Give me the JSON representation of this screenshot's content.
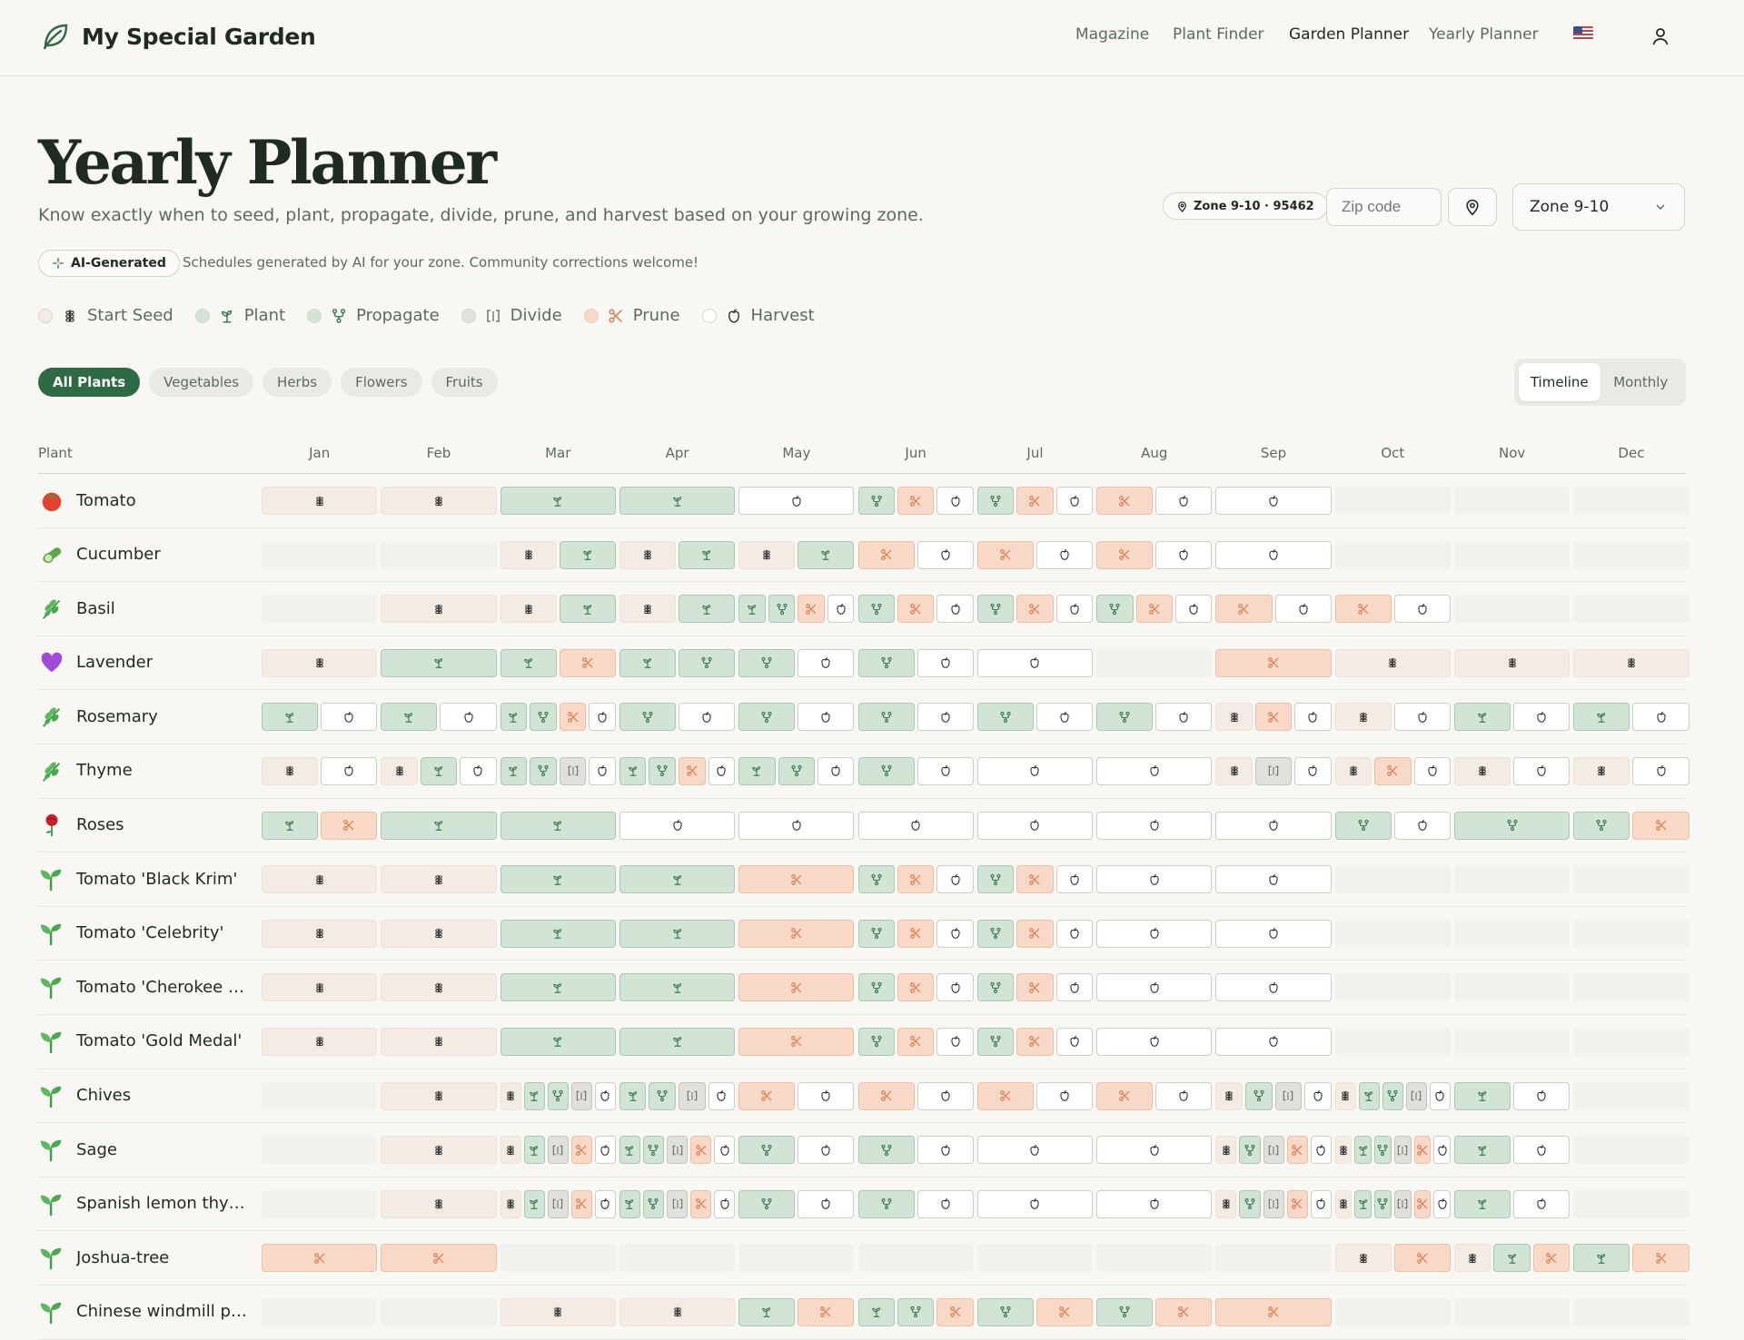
{
  "brand": {
    "name": "My Special Garden"
  },
  "nav": {
    "magazine": "Magazine",
    "plant_finder": "Plant Finder",
    "garden_planner": "Garden Planner",
    "yearly_planner": "Yearly Planner"
  },
  "page": {
    "title": "Yearly Planner",
    "subtitle": "Know exactly when to seed, plant, propagate, divide, prune, and harvest based on your growing zone."
  },
  "zone": {
    "pill": "Zone 9-10 · 95462",
    "zip_placeholder": "Zip code",
    "selected": "Zone 9-10"
  },
  "ai": {
    "badge": "AI-Generated",
    "note": "Schedules generated by AI for your zone. Community corrections welcome!"
  },
  "legend": [
    {
      "key": "seed",
      "label": "Start Seed",
      "color": "#f4ebe5"
    },
    {
      "key": "plant",
      "label": "Plant",
      "color": "#d2e4d6"
    },
    {
      "key": "prop",
      "label": "Propagate",
      "color": "#d2e4d6"
    },
    {
      "key": "divide",
      "label": "Divide",
      "color": "#e0e0dd"
    },
    {
      "key": "prune",
      "label": "Prune",
      "color": "#f8d8c7"
    },
    {
      "key": "harvest",
      "label": "Harvest",
      "color": "#ffffff"
    }
  ],
  "filters": [
    "All Plants",
    "Vegetables",
    "Herbs",
    "Flowers",
    "Fruits"
  ],
  "active_filter": "All Plants",
  "views": {
    "timeline": "Timeline",
    "monthly": "Monthly",
    "active": "timeline"
  },
  "table": {
    "plant_header": "Plant",
    "months": [
      "Jan",
      "Feb",
      "Mar",
      "Apr",
      "May",
      "Jun",
      "Jul",
      "Aug",
      "Sep",
      "Oct",
      "Nov",
      "Dec"
    ]
  },
  "colors": {
    "accent": "#2e6b45",
    "prune_icon": "#e07a4f",
    "plant_icon": "#3f7d55"
  },
  "plants": [
    {
      "name": "Tomato",
      "icon": "tomato",
      "months": [
        [
          "seed"
        ],
        [
          "seed"
        ],
        [
          "plant"
        ],
        [
          "plant"
        ],
        [
          "harvest"
        ],
        [
          "prop",
          "prune",
          "harvest"
        ],
        [
          "prop",
          "prune",
          "harvest"
        ],
        [
          "prune",
          "harvest"
        ],
        [
          "harvest"
        ],
        [],
        [],
        []
      ]
    },
    {
      "name": "Cucumber",
      "icon": "cucumber",
      "months": [
        [],
        [],
        [
          "seed",
          "plant"
        ],
        [
          "seed",
          "plant"
        ],
        [
          "seed",
          "plant"
        ],
        [
          "prune",
          "harvest"
        ],
        [
          "prune",
          "harvest"
        ],
        [
          "prune",
          "harvest"
        ],
        [
          "harvest"
        ],
        [],
        [],
        []
      ]
    },
    {
      "name": "Basil",
      "icon": "herb",
      "months": [
        [],
        [
          "seed"
        ],
        [
          "seed",
          "plant"
        ],
        [
          "seed",
          "plant"
        ],
        [
          "plant",
          "prop",
          "prune",
          "harvest"
        ],
        [
          "prop",
          "prune",
          "harvest"
        ],
        [
          "prop",
          "prune",
          "harvest"
        ],
        [
          "prop",
          "prune",
          "harvest"
        ],
        [
          "prune",
          "harvest"
        ],
        [
          "prune",
          "harvest"
        ],
        [],
        []
      ]
    },
    {
      "name": "Lavender",
      "icon": "heart",
      "months": [
        [
          "seed"
        ],
        [
          "plant"
        ],
        [
          "plant",
          "prune"
        ],
        [
          "plant",
          "prop"
        ],
        [
          "prop",
          "harvest"
        ],
        [
          "prop",
          "harvest"
        ],
        [
          "harvest"
        ],
        [],
        [
          "prune"
        ],
        [
          "seed"
        ],
        [
          "seed"
        ],
        [
          "seed"
        ]
      ]
    },
    {
      "name": "Rosemary",
      "icon": "herb",
      "months": [
        [
          "plant",
          "harvest"
        ],
        [
          "plant",
          "harvest"
        ],
        [
          "plant",
          "prop",
          "prune",
          "harvest"
        ],
        [
          "prop",
          "harvest"
        ],
        [
          "prop",
          "harvest"
        ],
        [
          "prop",
          "harvest"
        ],
        [
          "prop",
          "harvest"
        ],
        [
          "prop",
          "harvest"
        ],
        [
          "seed",
          "prune",
          "harvest"
        ],
        [
          "seed",
          "harvest"
        ],
        [
          "plant",
          "harvest"
        ],
        [
          "plant",
          "harvest"
        ]
      ]
    },
    {
      "name": "Thyme",
      "icon": "herb",
      "months": [
        [
          "seed",
          "harvest"
        ],
        [
          "seed",
          "plant",
          "harvest"
        ],
        [
          "plant",
          "prop",
          "divide",
          "harvest"
        ],
        [
          "plant",
          "prop",
          "prune",
          "harvest"
        ],
        [
          "plant",
          "prop",
          "harvest"
        ],
        [
          "prop",
          "harvest"
        ],
        [
          "harvest"
        ],
        [
          "harvest"
        ],
        [
          "seed",
          "divide",
          "harvest"
        ],
        [
          "seed",
          "prune",
          "harvest"
        ],
        [
          "seed",
          "harvest"
        ],
        [
          "seed",
          "harvest"
        ]
      ]
    },
    {
      "name": "Roses",
      "icon": "rose",
      "months": [
        [
          "plant",
          "prune"
        ],
        [
          "plant"
        ],
        [
          "plant"
        ],
        [
          "harvest"
        ],
        [
          "harvest"
        ],
        [
          "harvest"
        ],
        [
          "harvest"
        ],
        [
          "harvest"
        ],
        [
          "harvest"
        ],
        [
          "prop",
          "harvest"
        ],
        [
          "prop"
        ],
        [
          "prop",
          "prune"
        ]
      ]
    },
    {
      "name": "Tomato 'Black Krim'",
      "icon": "sprout",
      "months": [
        [
          "seed"
        ],
        [
          "seed"
        ],
        [
          "plant"
        ],
        [
          "plant"
        ],
        [
          "prune"
        ],
        [
          "prop",
          "prune",
          "harvest"
        ],
        [
          "prop",
          "prune",
          "harvest"
        ],
        [
          "harvest"
        ],
        [
          "harvest"
        ],
        [],
        [],
        []
      ]
    },
    {
      "name": "Tomato 'Celebrity'",
      "icon": "sprout",
      "months": [
        [
          "seed"
        ],
        [
          "seed"
        ],
        [
          "plant"
        ],
        [
          "plant"
        ],
        [
          "prune"
        ],
        [
          "prop",
          "prune",
          "harvest"
        ],
        [
          "prop",
          "prune",
          "harvest"
        ],
        [
          "harvest"
        ],
        [
          "harvest"
        ],
        [],
        [],
        []
      ]
    },
    {
      "name": "Tomato 'Cherokee Pur...",
      "icon": "sprout",
      "months": [
        [
          "seed"
        ],
        [
          "seed"
        ],
        [
          "plant"
        ],
        [
          "plant"
        ],
        [
          "prune"
        ],
        [
          "prop",
          "prune",
          "harvest"
        ],
        [
          "prop",
          "prune",
          "harvest"
        ],
        [
          "harvest"
        ],
        [
          "harvest"
        ],
        [],
        [],
        []
      ]
    },
    {
      "name": "Tomato 'Gold Medal'",
      "icon": "sprout",
      "months": [
        [
          "seed"
        ],
        [
          "seed"
        ],
        [
          "plant"
        ],
        [
          "plant"
        ],
        [
          "prune"
        ],
        [
          "prop",
          "prune",
          "harvest"
        ],
        [
          "prop",
          "prune",
          "harvest"
        ],
        [
          "harvest"
        ],
        [
          "harvest"
        ],
        [],
        [],
        []
      ]
    },
    {
      "name": "Chives",
      "icon": "sprout",
      "months": [
        [],
        [
          "seed"
        ],
        [
          "seed",
          "plant",
          "prop",
          "divide",
          "harvest"
        ],
        [
          "plant",
          "prop",
          "divide",
          "harvest"
        ],
        [
          "prune",
          "harvest"
        ],
        [
          "prune",
          "harvest"
        ],
        [
          "prune",
          "harvest"
        ],
        [
          "prune",
          "harvest"
        ],
        [
          "seed",
          "prop",
          "divide",
          "harvest"
        ],
        [
          "seed",
          "plant",
          "prop",
          "divide",
          "harvest"
        ],
        [
          "plant",
          "harvest"
        ],
        []
      ]
    },
    {
      "name": "Sage",
      "icon": "sprout",
      "months": [
        [],
        [
          "seed"
        ],
        [
          "seed",
          "plant",
          "divide",
          "prune",
          "harvest"
        ],
        [
          "plant",
          "prop",
          "divide",
          "prune",
          "harvest"
        ],
        [
          "prop",
          "harvest"
        ],
        [
          "prop",
          "harvest"
        ],
        [
          "harvest"
        ],
        [
          "harvest"
        ],
        [
          "seed",
          "prop",
          "divide",
          "prune",
          "harvest"
        ],
        [
          "seed",
          "plant",
          "prop",
          "divide",
          "prune",
          "harvest"
        ],
        [
          "plant",
          "harvest"
        ],
        []
      ]
    },
    {
      "name": "Spanish lemon thyme",
      "icon": "sprout",
      "months": [
        [],
        [
          "seed"
        ],
        [
          "seed",
          "plant",
          "divide",
          "prune",
          "harvest"
        ],
        [
          "plant",
          "prop",
          "divide",
          "prune",
          "harvest"
        ],
        [
          "prop",
          "harvest"
        ],
        [
          "prop",
          "harvest"
        ],
        [
          "harvest"
        ],
        [
          "harvest"
        ],
        [
          "seed",
          "prop",
          "divide",
          "prune",
          "harvest"
        ],
        [
          "seed",
          "plant",
          "prop",
          "divide",
          "prune",
          "harvest"
        ],
        [
          "plant",
          "harvest"
        ],
        []
      ]
    },
    {
      "name": "Joshua-tree",
      "icon": "sprout",
      "months": [
        [
          "prune"
        ],
        [
          "prune"
        ],
        [],
        [],
        [],
        [],
        [],
        [],
        [],
        [
          "seed",
          "prune"
        ],
        [
          "seed",
          "plant",
          "prune"
        ],
        [
          "plant",
          "prune"
        ]
      ]
    },
    {
      "name": "Chinese windmill palm",
      "icon": "sprout",
      "months": [
        [],
        [],
        [
          "seed"
        ],
        [
          "seed"
        ],
        [
          "plant",
          "prune"
        ],
        [
          "plant",
          "prop",
          "prune"
        ],
        [
          "prop",
          "prune"
        ],
        [
          "prop",
          "prune"
        ],
        [
          "prune"
        ],
        [],
        [],
        []
      ]
    }
  ]
}
